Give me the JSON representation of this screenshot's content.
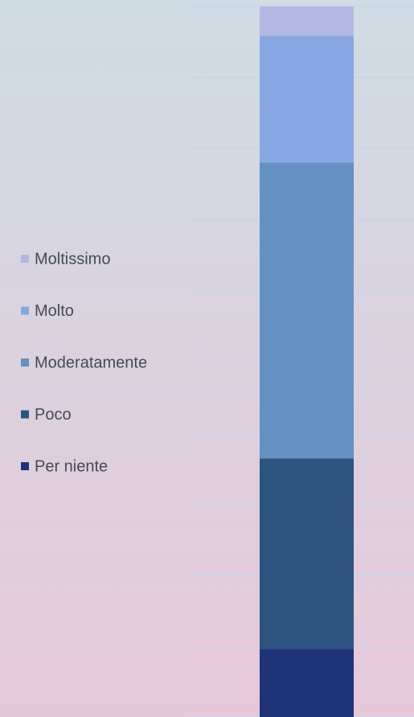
{
  "chart_data": {
    "type": "stacked-bar",
    "categories": [
      null
    ],
    "series": [
      {
        "name": "Per niente",
        "color": "#1f3378",
        "values": [
          9.6
        ]
      },
      {
        "name": "Poco",
        "color": "#2d5480",
        "values": [
          26.8
        ]
      },
      {
        "name": "Moderatamente",
        "color": "#6490c4",
        "values": [
          41.6
        ]
      },
      {
        "name": "Molto",
        "color": "#88a7e2",
        "values": [
          17.9
        ]
      },
      {
        "name": "Moltissimo",
        "color": "#b3b8e2",
        "values": [
          4.1
        ]
      }
    ],
    "ylim": [
      0,
      100
    ],
    "yticks": [
      0,
      10,
      20,
      30,
      40,
      50,
      60,
      70,
      80,
      90,
      100
    ],
    "grid": true,
    "legend": "left"
  }
}
